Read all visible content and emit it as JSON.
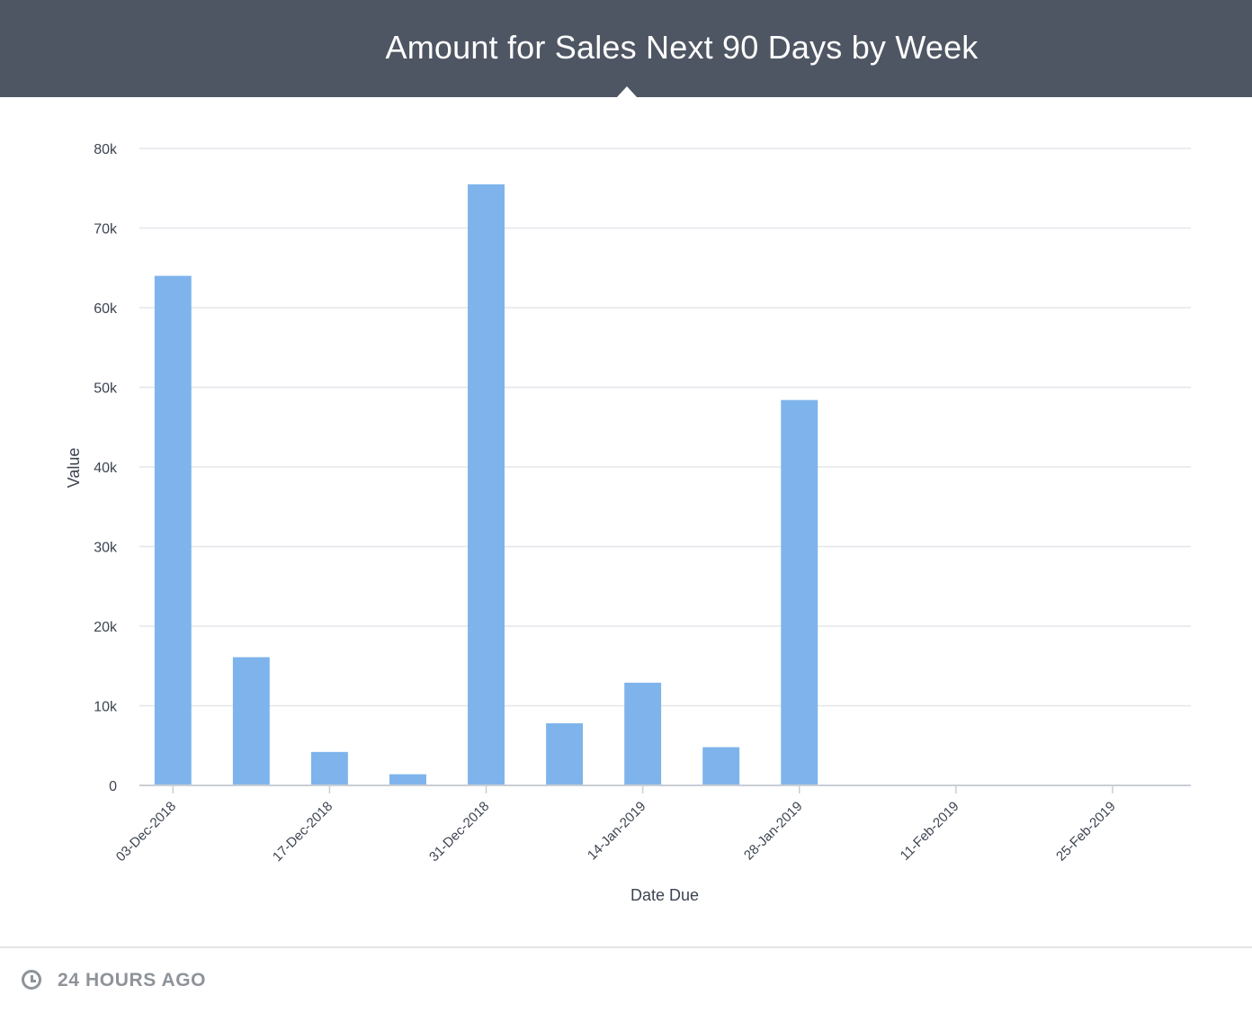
{
  "header": {
    "title": "Amount for Sales Next 90 Days by Week"
  },
  "footer": {
    "refresh_text": "24 HOURS AGO",
    "icon": "clock-icon"
  },
  "colors": {
    "header_bg": "#4f5663",
    "bar": "#7eb4eb",
    "grid": "#e4e6ea",
    "axis": "#c9ced6",
    "text": "#3d4450",
    "muted": "#8e939a"
  },
  "chart_data": {
    "type": "bar",
    "title": "Amount for Sales Next 90 Days by Week",
    "xlabel": "Date Due",
    "ylabel": "Value",
    "ylim": [
      0,
      80000
    ],
    "yticks": [
      0,
      10000,
      20000,
      30000,
      40000,
      50000,
      60000,
      70000,
      80000
    ],
    "ytick_labels": [
      "0",
      "10k",
      "20k",
      "30k",
      "40k",
      "50k",
      "60k",
      "70k",
      "80k"
    ],
    "xlim": [
      "2018-11-30",
      "2019-03-04"
    ],
    "xticks": [
      {
        "date": "2018-12-03",
        "label": "03-Dec-2018"
      },
      {
        "date": "2018-12-17",
        "label": "17-Dec-2018"
      },
      {
        "date": "2018-12-31",
        "label": "31-Dec-2018"
      },
      {
        "date": "2019-01-14",
        "label": "14-Jan-2019"
      },
      {
        "date": "2019-01-28",
        "label": "28-Jan-2019"
      },
      {
        "date": "2019-02-11",
        "label": "11-Feb-2019"
      },
      {
        "date": "2019-02-25",
        "label": "25-Feb-2019"
      }
    ],
    "bars": [
      {
        "date": "2018-12-03",
        "value": 64000
      },
      {
        "date": "2018-12-10",
        "value": 16100
      },
      {
        "date": "2018-12-17",
        "value": 4200
      },
      {
        "date": "2018-12-24",
        "value": 1400
      },
      {
        "date": "2018-12-31",
        "value": 75500
      },
      {
        "date": "2019-01-07",
        "value": 7800
      },
      {
        "date": "2019-01-14",
        "value": 12900
      },
      {
        "date": "2019-01-21",
        "value": 4800
      },
      {
        "date": "2019-01-28",
        "value": 48400
      }
    ],
    "grid": true,
    "legend": "none"
  }
}
